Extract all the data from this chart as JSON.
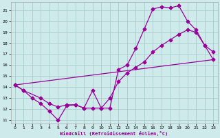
{
  "xlabel": "Windchill (Refroidissement éolien,°C)",
  "background_color": "#ceeaea",
  "grid_color": "#aacccc",
  "line_color": "#990099",
  "xlim": [
    -0.5,
    23.5
  ],
  "ylim": [
    10.7,
    21.7
  ],
  "xticks": [
    0,
    1,
    2,
    3,
    4,
    5,
    6,
    7,
    8,
    9,
    10,
    11,
    12,
    13,
    14,
    15,
    16,
    17,
    18,
    19,
    20,
    21,
    22,
    23
  ],
  "yticks": [
    11,
    12,
    13,
    14,
    15,
    16,
    17,
    18,
    19,
    20,
    21
  ],
  "line1_x": [
    0,
    1,
    2,
    3,
    4,
    5,
    6,
    7,
    8,
    9,
    10,
    11,
    12,
    13,
    14,
    15,
    16,
    17,
    18,
    19,
    20,
    21,
    22,
    23
  ],
  "line1_y": [
    14.2,
    13.7,
    13.0,
    12.5,
    11.8,
    11.0,
    12.3,
    12.4,
    12.1,
    13.7,
    12.1,
    12.1,
    15.6,
    16.0,
    17.5,
    19.3,
    21.1,
    21.3,
    21.2,
    21.4,
    20.0,
    19.2,
    17.8,
    17.2
  ],
  "line2_x": [
    0,
    1,
    3,
    4,
    5,
    6,
    7,
    8,
    9,
    10,
    11,
    12,
    13,
    14,
    15,
    16,
    17,
    18,
    19,
    20,
    21,
    22,
    23
  ],
  "line2_y": [
    14.2,
    13.7,
    13.0,
    12.5,
    12.2,
    12.4,
    12.4,
    12.1,
    12.1,
    12.1,
    13.0,
    14.5,
    15.3,
    15.8,
    16.3,
    17.2,
    17.8,
    18.3,
    18.8,
    19.2,
    19.0,
    17.8,
    16.5
  ],
  "line3_x": [
    0,
    23
  ],
  "line3_y": [
    14.2,
    16.5
  ],
  "markersize": 2.5,
  "linewidth": 0.9
}
